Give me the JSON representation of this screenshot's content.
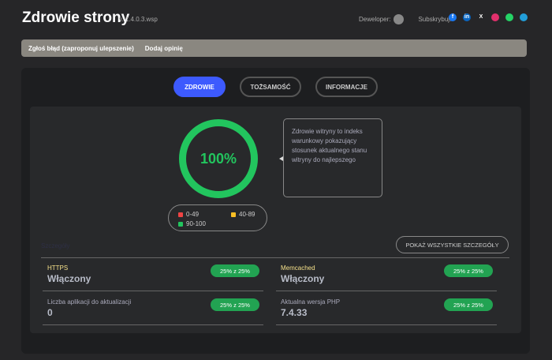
{
  "header": {
    "title": "Zdrowie strony",
    "version": "v. 1.4.0.3.wsp",
    "developer_label": "Deweloper:",
    "subscribe_label": "Subskrybuj:",
    "social": [
      {
        "icon": "facebook-icon",
        "glyph": "f",
        "color": "#1877f2"
      },
      {
        "icon": "linkedin-icon",
        "glyph": "in",
        "color": "#0a66c2"
      },
      {
        "icon": "x-icon",
        "glyph": "X",
        "color": "transparent"
      },
      {
        "icon": "instagram-icon",
        "glyph": "",
        "color": "#e1306c"
      },
      {
        "icon": "whatsapp-icon",
        "glyph": "",
        "color": "#25d366"
      },
      {
        "icon": "telegram-icon",
        "glyph": "",
        "color": "#229ed9"
      }
    ]
  },
  "toolbar": {
    "report_bug": "Zgłoś błąd (zaproponuj ulepszenie)",
    "add_review": "Dodaj opinię"
  },
  "tabs": [
    {
      "label": "ZDROWIE",
      "active": true
    },
    {
      "label": "TOŻSAMOŚĆ"
    },
    {
      "label": "INFORMACJE"
    }
  ],
  "health": {
    "score": "100%",
    "score_value": 100,
    "color": "#22c55e",
    "description": "Zdrowie witryny to indeks warunkowy pokazujący stosunek aktualnego stanu witryny do najlepszego",
    "legend": [
      {
        "label": "0-49",
        "color": "#ef4444"
      },
      {
        "label": "40-89",
        "color": "#fbbf24"
      },
      {
        "label": "90-100",
        "color": "#22c55e"
      }
    ]
  },
  "details": {
    "hidden_label": "Szczegóły",
    "show_all": "POKAŻ WSZYSTKIE SZCZEGÓŁY",
    "items": [
      {
        "label": "HTTPS",
        "value": "Włączony",
        "badge": "25% z 25%",
        "label_color": "#f5e08a"
      },
      {
        "label": "Memcached",
        "value": "Włączony",
        "badge": "25% z 25%",
        "label_color": "#f5e08a"
      },
      {
        "label": "Liczba aplikacji do aktualizacji",
        "value": "0",
        "badge": "25% z 25%",
        "label_color": "#aab"
      },
      {
        "label": "Aktualna wersja PHP",
        "value": "7.4.33",
        "badge": "25% z 25%",
        "label_color": "#aab"
      }
    ]
  }
}
